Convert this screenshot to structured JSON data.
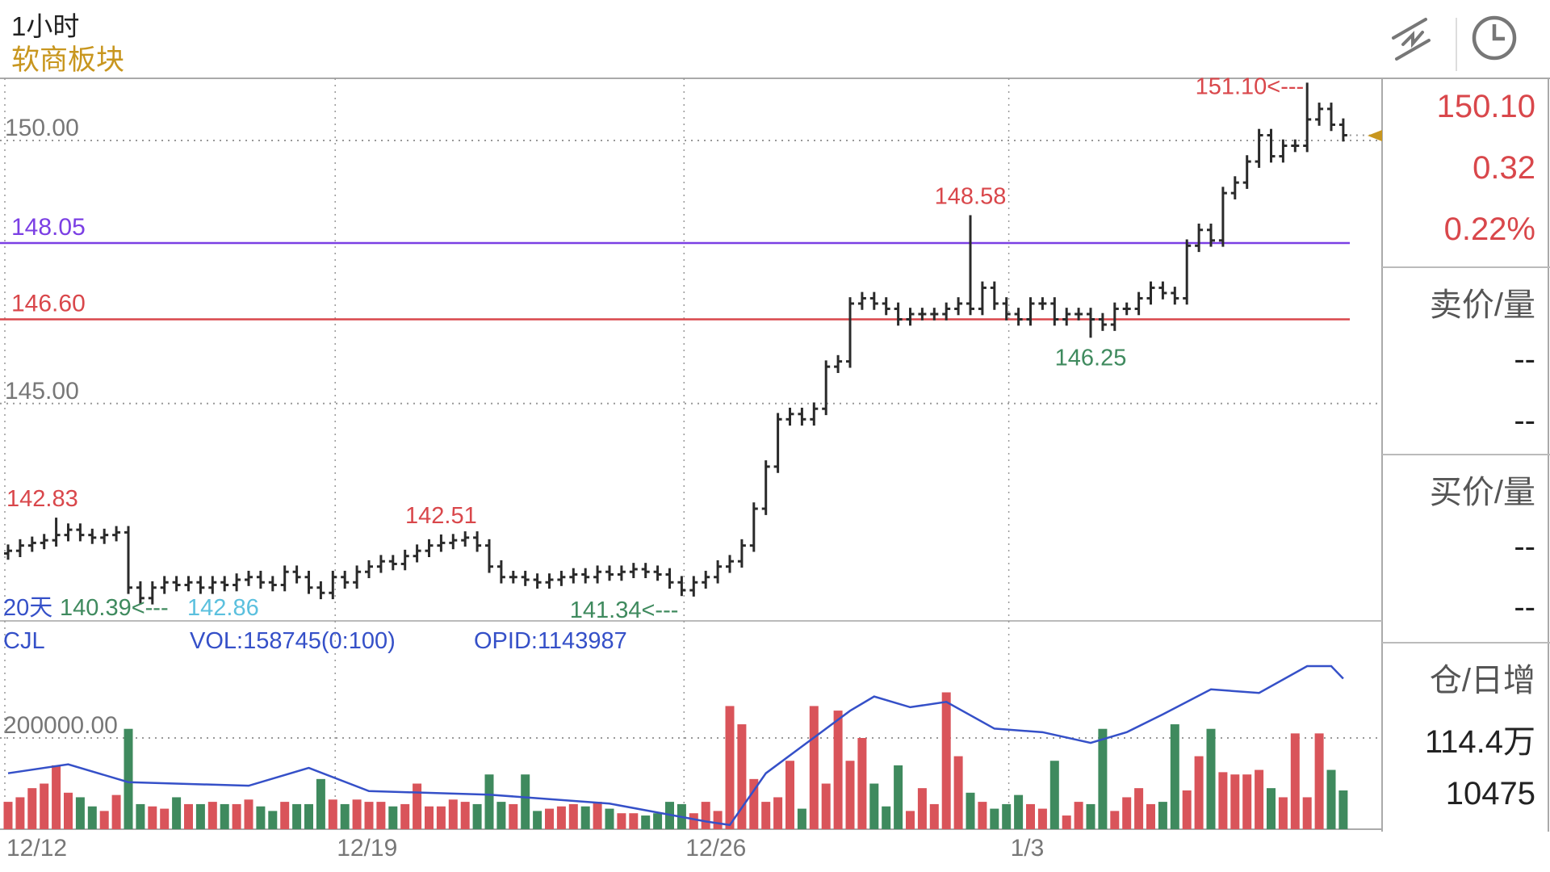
{
  "header": {
    "period": "1小时",
    "board": "软商板块"
  },
  "toolbar": {
    "icons": [
      "drawing-tool-icon",
      "clock-icon"
    ]
  },
  "right_panel": {
    "price": "150.10",
    "change": "0.32",
    "change_pct": "0.22%",
    "ask_label": "卖价/量",
    "ask_price": "--",
    "ask_volume": "--",
    "bid_label": "买价/量",
    "bid_price": "--",
    "bid_volume": "--",
    "oi_label": "仓/日增",
    "oi_value": "114.4万",
    "oi_change": "10475"
  },
  "colors": {
    "up": "#d9545a",
    "down": "#3f8a5e",
    "bar": "#2a2a2a",
    "support": "#d9474b",
    "resistance": "#7b3fe4",
    "oi_line": "#3550c8",
    "accent": "#c8961e"
  },
  "chart_data": {
    "type": "bar",
    "title": "1小时",
    "price_axis": {
      "ticks": [
        "150.00",
        "145.00"
      ],
      "tick_values": [
        150,
        145
      ],
      "range": [
        140.8,
        151.4
      ]
    },
    "date_labels": [
      {
        "label": "12/12",
        "bar": 0
      },
      {
        "label": "12/19",
        "bar": 28
      },
      {
        "label": "12/26",
        "bar": 57
      },
      {
        "label": "1/3",
        "bar": 84
      }
    ],
    "close": [
      142.2,
      142.3,
      142.35,
      142.4,
      142.5,
      142.6,
      142.5,
      142.45,
      142.5,
      142.55,
      141.5,
      141.3,
      141.5,
      141.6,
      141.55,
      141.6,
      141.5,
      141.6,
      141.55,
      141.65,
      141.7,
      141.6,
      141.55,
      141.8,
      141.7,
      141.5,
      141.4,
      141.7,
      141.6,
      141.8,
      141.9,
      142.0,
      141.95,
      142.1,
      142.2,
      142.3,
      142.35,
      142.4,
      142.45,
      142.3,
      141.9,
      141.7,
      141.7,
      141.65,
      141.6,
      141.65,
      141.7,
      141.75,
      141.7,
      141.8,
      141.75,
      141.8,
      141.85,
      141.8,
      141.75,
      141.6,
      141.45,
      141.6,
      141.7,
      141.9,
      142.0,
      142.3,
      143.0,
      143.8,
      144.7,
      144.8,
      144.7,
      144.9,
      145.7,
      145.8,
      146.9,
      147.0,
      146.9,
      146.8,
      146.6,
      146.7,
      146.7,
      146.7,
      146.8,
      146.9,
      146.8,
      147.2,
      146.9,
      146.7,
      146.6,
      146.9,
      146.9,
      146.6,
      146.7,
      146.7,
      146.6,
      146.5,
      146.8,
      146.8,
      147.0,
      147.2,
      147.1,
      147.0,
      148.0,
      148.3,
      148.1,
      149.0,
      149.2,
      149.6,
      150.1,
      149.7,
      149.9,
      149.9,
      150.4,
      150.6,
      150.3,
      150.1
    ],
    "extremes": [
      {
        "bar": 4,
        "high": 142.83,
        "label": "142.83",
        "kind": "high"
      },
      {
        "bar": 36,
        "high": 142.51,
        "label": "142.51",
        "kind": "high"
      },
      {
        "bar": 56,
        "low": 141.34,
        "label": "141.34<---",
        "kind": "low"
      },
      {
        "bar": 80,
        "high": 148.58,
        "label": "148.58",
        "kind": "high"
      },
      {
        "bar": 90,
        "low": 146.25,
        "label": "146.25",
        "kind": "low"
      },
      {
        "bar": 108,
        "high": 151.1,
        "label": "151.10<---",
        "kind": "high"
      }
    ],
    "overlap_labels": {
      "days": "20天",
      "low_ref": "140.39<---",
      "high_ref": "142.86"
    },
    "lines": [
      {
        "label": "148.05",
        "value": 148.05,
        "color": "#7b3fe4"
      },
      {
        "label": "146.60",
        "value": 146.6,
        "color": "#d9474b"
      }
    ],
    "last_price": 150.1,
    "volume": {
      "indicator": "CJL",
      "vol_label": "VOL:158745(0:100)",
      "opid_label": "OPID:1143987",
      "tick_label": "200000.00",
      "tick_value": 200000,
      "range": [
        0,
        375000
      ],
      "values": [
        60000,
        70000,
        90000,
        100000,
        140000,
        80000,
        70000,
        50000,
        40000,
        75000,
        220000,
        55000,
        50000,
        45000,
        70000,
        55000,
        55000,
        60000,
        55000,
        55000,
        65000,
        50000,
        40000,
        60000,
        55000,
        55000,
        110000,
        65000,
        55000,
        65000,
        60000,
        60000,
        50000,
        55000,
        100000,
        50000,
        50000,
        65000,
        60000,
        55000,
        120000,
        60000,
        55000,
        120000,
        40000,
        45000,
        50000,
        55000,
        50000,
        60000,
        45000,
        35000,
        35000,
        30000,
        35000,
        60000,
        55000,
        35000,
        60000,
        40000,
        270000,
        230000,
        110000,
        60000,
        70000,
        150000,
        45000,
        270000,
        100000,
        260000,
        150000,
        200000,
        100000,
        50000,
        140000,
        40000,
        90000,
        55000,
        300000,
        160000,
        80000,
        60000,
        45000,
        55000,
        75000,
        55000,
        45000,
        150000,
        30000,
        60000,
        55000,
        220000,
        40000,
        70000,
        90000,
        55000,
        60000,
        230000,
        85000,
        160000,
        220000,
        125000,
        120000,
        120000,
        130000,
        90000,
        70000,
        210000,
        70000,
        210000,
        130000,
        85000
      ],
      "oi_range": [
        1055000,
        1150000
      ],
      "oi_points": [
        [
          0,
          1085000
        ],
        [
          5,
          1090000
        ],
        [
          10,
          1080000
        ],
        [
          20,
          1078000
        ],
        [
          25,
          1088000
        ],
        [
          30,
          1075000
        ],
        [
          40,
          1073000
        ],
        [
          50,
          1068000
        ],
        [
          58,
          1058000
        ],
        [
          60,
          1056000
        ],
        [
          63,
          1085000
        ],
        [
          66,
          1100000
        ],
        [
          70,
          1120000
        ],
        [
          72,
          1128000
        ],
        [
          75,
          1122000
        ],
        [
          78,
          1125000
        ],
        [
          82,
          1110000
        ],
        [
          86,
          1108000
        ],
        [
          90,
          1102000
        ],
        [
          93,
          1108000
        ],
        [
          96,
          1118000
        ],
        [
          100,
          1132000
        ],
        [
          104,
          1130000
        ],
        [
          108,
          1145000
        ],
        [
          110,
          1145000
        ],
        [
          111,
          1138000
        ]
      ]
    }
  }
}
